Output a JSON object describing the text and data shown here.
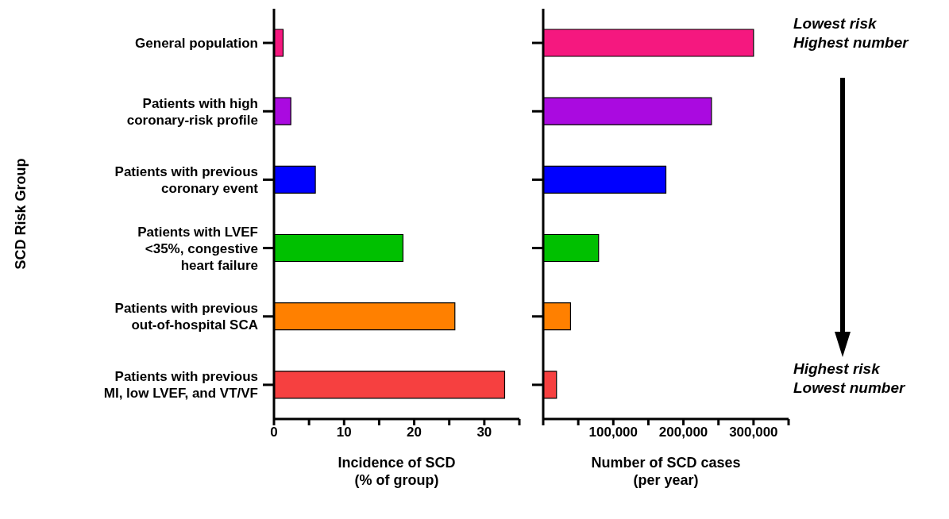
{
  "chart_data": [
    {
      "type": "bar",
      "orientation": "horizontal",
      "ylabel": "SCD Risk Group",
      "xlabel": "Incidence of SCD\n(% of group)",
      "categories": [
        "General population",
        "Patients with high\ncoronary-risk profile",
        "Patients with previous\ncoronary event",
        "Patients with LVEF\n<35%, congestive\nheart failure",
        "Patients with previous\nout-of-hospital SCA",
        "Patients with previous\nMI, low LVEF, and VT/VF"
      ],
      "values": [
        1.3,
        2.4,
        5.9,
        18.4,
        25.8,
        32.9
      ],
      "colors": [
        "#f5187f",
        "#aa0ae0",
        "#0000ff",
        "#00c000",
        "#ff8000",
        "#f64040"
      ],
      "xlim": [
        0,
        35
      ],
      "xticks": [
        0,
        {
          "value": 5,
          "label": null
        },
        10,
        {
          "value": 15,
          "label": null
        },
        20,
        {
          "value": 25,
          "label": null
        },
        30,
        {
          "value": 35,
          "label": null
        }
      ]
    },
    {
      "type": "bar",
      "orientation": "horizontal",
      "xlabel": "Number of SCD cases\n(per year)",
      "tick_labels": "x",
      "categories": [
        null,
        null,
        null,
        null,
        null,
        null
      ],
      "values": [
        300000,
        240000,
        175000,
        79000,
        39000,
        19000
      ],
      "colors": [
        "#f5187f",
        "#aa0ae0",
        "#0000ff",
        "#00c000",
        "#ff8000",
        "#f64040"
      ],
      "xlim": [
        0,
        350000
      ],
      "xticks": [
        {
          "value": 0,
          "label": null
        },
        {
          "value": 50000,
          "label": null
        },
        {
          "value": 100000,
          "label": "100,000"
        },
        {
          "value": 150000,
          "label": null
        },
        {
          "value": 200000,
          "label": "200,000"
        },
        {
          "value": 250000,
          "label": null
        },
        {
          "value": 300000,
          "label": "300,000"
        },
        {
          "value": 350000,
          "label": null
        }
      ],
      "annotations": [
        "Lowest risk\nHighest number",
        "Highest risk\nLowest number"
      ]
    }
  ]
}
